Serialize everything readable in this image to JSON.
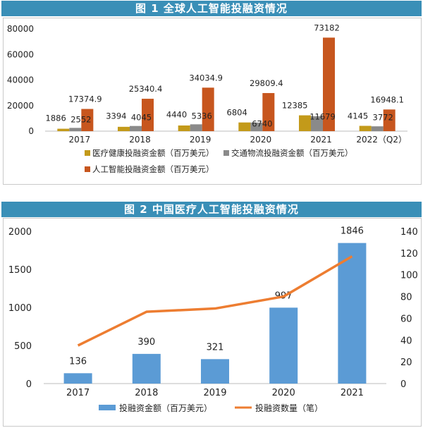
{
  "chart_data": [
    {
      "type": "bar",
      "title": "图 1  全球人工智能投融资情况",
      "categories": [
        "2017",
        "2018",
        "2019",
        "2020",
        "2021",
        "2022（Q2）"
      ],
      "ylim": [
        0,
        80000
      ],
      "y_ticks": [
        "0",
        "20000",
        "40000",
        "60000",
        "80000"
      ],
      "series": [
        {
          "name": "医疗健康投融资金额（百万美元）",
          "color": "#c39a1a",
          "values": [
            1886,
            3394,
            4440,
            6804,
            12385,
            4145
          ],
          "labels": [
            "1886",
            "3394",
            "4440",
            "6804",
            "12385",
            "4145"
          ]
        },
        {
          "name": "交通物流投融资金额（百万美元）",
          "color": "#8a8a8a",
          "values": [
            2552,
            4045,
            5336,
            6740,
            11679,
            3772
          ],
          "labels": [
            "2552",
            "4045",
            "5336",
            "6740",
            "11679",
            "3772"
          ]
        },
        {
          "name": "人工智能投融资金额（百万美元）",
          "color": "#c7561e",
          "values": [
            17374.9,
            25340.4,
            34034.9,
            29809.4,
            73182,
            16948.1
          ],
          "labels": [
            "17374.9",
            "25340.4",
            "34034.9",
            "29809.4",
            "73182",
            "16948.1"
          ]
        }
      ],
      "legend": "bottom"
    },
    {
      "type": "bar+line",
      "title": "图 2  中国医疗人工智能投融资情况",
      "categories": [
        "2017",
        "2018",
        "2019",
        "2020",
        "2021"
      ],
      "ylim": [
        0,
        2000
      ],
      "y2lim": [
        0,
        140
      ],
      "y_ticks": [
        "0",
        "500",
        "1000",
        "1500",
        "2000"
      ],
      "y2_ticks": [
        "0",
        "20",
        "40",
        "60",
        "80",
        "100",
        "120",
        "140"
      ],
      "series": [
        {
          "name": "投融资金额（百万美元）",
          "type": "bar",
          "axis": "left",
          "color": "#5b9bd5",
          "values": [
            136,
            390,
            321,
            997,
            1846
          ],
          "labels": [
            "136",
            "390",
            "321",
            "997",
            "1846"
          ]
        },
        {
          "name": "投融资数量（笔）",
          "type": "line",
          "axis": "right",
          "color": "#ed7d31",
          "values": [
            35,
            66,
            69,
            80,
            117
          ]
        }
      ],
      "legend": "bottom"
    }
  ]
}
